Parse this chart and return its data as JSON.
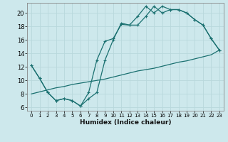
{
  "xlabel": "Humidex (Indice chaleur)",
  "bg_color": "#cde8ec",
  "line_color": "#1a7070",
  "grid_color": "#b8d8dc",
  "xlim": [
    -0.5,
    23.5
  ],
  "ylim": [
    5.5,
    21.5
  ],
  "xtick_vals": [
    0,
    1,
    2,
    3,
    4,
    5,
    6,
    7,
    8,
    9,
    10,
    11,
    12,
    13,
    14,
    15,
    16,
    17,
    18,
    19,
    20,
    21,
    22,
    23
  ],
  "xtick_labels": [
    "0",
    "1",
    "2",
    "3",
    "4",
    "5",
    "6",
    "7",
    "8",
    "9",
    "10",
    "11",
    "12",
    "13",
    "14",
    "15",
    "16",
    "17",
    "18",
    "19",
    "20",
    "21",
    "22",
    "23"
  ],
  "ytick_vals": [
    6,
    8,
    10,
    12,
    14,
    16,
    18,
    20
  ],
  "ytick_labels": [
    "6",
    "8",
    "10",
    "12",
    "14",
    "16",
    "18",
    "20"
  ],
  "line1_x": [
    0,
    1,
    2,
    3,
    4,
    5,
    6,
    7,
    8,
    9,
    10,
    11,
    12,
    13,
    14,
    15,
    16,
    17,
    18,
    19,
    20,
    21,
    22,
    23
  ],
  "line1_y": [
    12.2,
    10.3,
    8.2,
    7.0,
    7.3,
    7.0,
    6.2,
    8.2,
    13.0,
    15.8,
    16.2,
    18.3,
    18.2,
    19.5,
    21.0,
    20.0,
    21.0,
    20.5,
    20.5,
    20.0,
    19.0,
    18.2,
    16.2,
    14.5
  ],
  "line2_x": [
    0,
    1,
    2,
    3,
    4,
    5,
    6,
    7,
    8,
    9,
    10,
    11,
    12,
    13,
    14,
    15,
    16,
    17,
    18,
    19,
    20,
    21,
    22,
    23
  ],
  "line2_y": [
    12.2,
    10.3,
    8.2,
    7.0,
    7.3,
    7.0,
    6.2,
    7.3,
    8.2,
    13.0,
    16.0,
    18.5,
    18.2,
    18.2,
    19.5,
    21.0,
    20.0,
    20.5,
    20.5,
    20.0,
    19.0,
    18.2,
    16.2,
    14.5
  ],
  "line3_x": [
    0,
    1,
    2,
    3,
    4,
    5,
    6,
    7,
    8,
    9,
    10,
    11,
    12,
    13,
    14,
    15,
    16,
    17,
    18,
    19,
    20,
    21,
    22,
    23
  ],
  "line3_y": [
    8.0,
    8.3,
    8.6,
    8.9,
    9.1,
    9.4,
    9.6,
    9.8,
    10.0,
    10.2,
    10.5,
    10.8,
    11.1,
    11.4,
    11.6,
    11.8,
    12.1,
    12.4,
    12.7,
    12.9,
    13.2,
    13.5,
    13.8,
    14.5
  ]
}
